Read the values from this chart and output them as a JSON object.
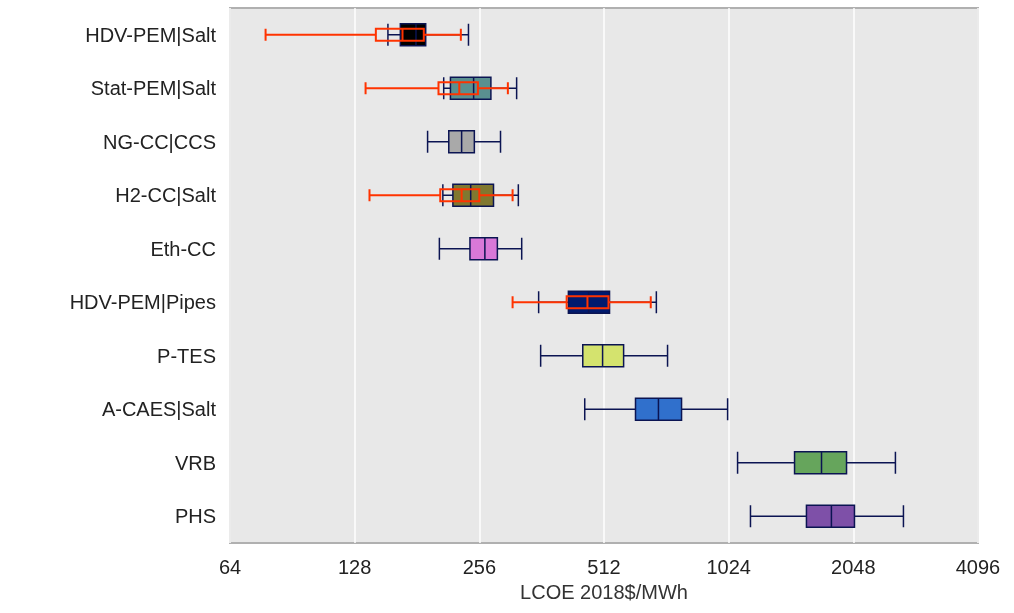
{
  "chart_data": {
    "type": "box",
    "orientation": "horizontal",
    "log": "x",
    "xlabel": "LCOE 2018$/MWh",
    "categories": [
      "HDV-PEM|Salt",
      "Stat-PEM|Salt",
      "NG-CC|CCS",
      "H2-CC|Salt",
      "Eth-CC",
      "HDV-PEM|Pipes",
      "P-TES",
      "A-CAES|Salt",
      "VRB",
      "PHS"
    ],
    "xlim": [
      64,
      4096
    ],
    "xticks": [
      64,
      128,
      256,
      512,
      1024,
      2048,
      4096
    ],
    "grid": "x",
    "series": [
      {
        "colors": [
          "#000000",
          "#5a9090",
          "#a9a9a9",
          "#807830",
          "#d878d8",
          "#001a6e",
          "#d4e36e",
          "#3070cc",
          "#66a55c",
          "#7e50a8"
        ],
        "boxes": [
          {
            "low": 154,
            "q1": 165,
            "median": 180,
            "q3": 190,
            "high": 241
          },
          {
            "low": 210,
            "q1": 218,
            "median": 248,
            "q3": 273,
            "high": 315
          },
          {
            "low": 192,
            "q1": 216,
            "median": 232,
            "q3": 249,
            "high": 288
          },
          {
            "low": 209,
            "q1": 221,
            "median": 244,
            "q3": 277,
            "high": 318
          },
          {
            "low": 205,
            "q1": 243,
            "median": 264,
            "q3": 283,
            "high": 324
          },
          {
            "low": 356,
            "q1": 420,
            "median": 470,
            "q3": 528,
            "high": 685
          },
          {
            "low": 360,
            "q1": 455,
            "median": 508,
            "q3": 571,
            "high": 729
          },
          {
            "low": 460,
            "q1": 610,
            "median": 693,
            "q3": 788,
            "high": 1018
          },
          {
            "low": 1076,
            "q1": 1477,
            "median": 1716,
            "q3": 1972,
            "high": 2588
          },
          {
            "low": 1156,
            "q1": 1578,
            "median": 1813,
            "q3": 2061,
            "high": 2706
          }
        ]
      },
      {
        "color": "#ff3300",
        "boxes": [
          {
            "low": 78,
            "q1": 144,
            "median": 167,
            "q3": 188,
            "high": 231
          },
          {
            "low": 136,
            "q1": 204,
            "median": 229,
            "q3": 254,
            "high": 300
          },
          null,
          {
            "low": 139,
            "q1": 206,
            "median": 232,
            "q3": 256,
            "high": 308
          },
          null,
          {
            "low": 308,
            "q1": 416,
            "median": 467,
            "q3": 525,
            "high": 664
          },
          null,
          null,
          null,
          null
        ]
      }
    ]
  }
}
